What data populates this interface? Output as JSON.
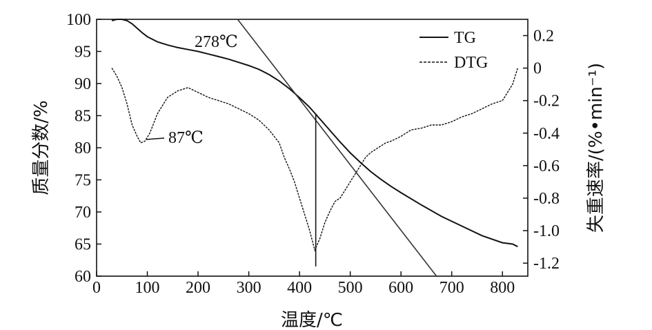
{
  "chart_data": {
    "type": "line",
    "xlabel": "温度/℃",
    "ylabel_left": "质量分数/%",
    "ylabel_right": "失重速率/(%•min⁻¹)",
    "xlim": [
      0,
      850
    ],
    "ylim_left": [
      60,
      100
    ],
    "ylim_right": [
      -1.28,
      0.3
    ],
    "x_ticks": [
      "0",
      "100",
      "200",
      "300",
      "400",
      "500",
      "600",
      "700",
      "800"
    ],
    "y_left_ticks": [
      "60",
      "65",
      "70",
      "75",
      "80",
      "85",
      "90",
      "95",
      "100"
    ],
    "y_right_ticks": [
      "-1.2",
      "-1.0",
      "-0.8",
      "-0.6",
      "-0.4",
      "-0.2",
      "0",
      "0.2"
    ],
    "legend": {
      "position": "top-right",
      "entries": [
        "TG",
        "DTG"
      ]
    },
    "annotations": [
      "278℃",
      "87℃"
    ],
    "series": [
      {
        "name": "TG",
        "axis": "left",
        "style": "solid",
        "x": [
          30,
          40,
          50,
          60,
          70,
          80,
          90,
          100,
          120,
          140,
          160,
          180,
          200,
          220,
          240,
          260,
          280,
          300,
          320,
          340,
          360,
          380,
          400,
          420,
          440,
          460,
          480,
          500,
          520,
          540,
          560,
          580,
          600,
          640,
          680,
          720,
          760,
          800,
          820,
          830
        ],
        "values": [
          99.8,
          100,
          100,
          99.8,
          99.3,
          98.6,
          97.9,
          97.3,
          96.5,
          96.0,
          95.6,
          95.3,
          95.0,
          94.6,
          94.2,
          93.8,
          93.3,
          92.8,
          92.2,
          91.4,
          90.4,
          89.2,
          87.8,
          86.3,
          84.5,
          82.7,
          80.9,
          79.2,
          77.7,
          76.3,
          75.1,
          74.0,
          73.0,
          71.1,
          69.3,
          67.8,
          66.3,
          65.2,
          65.0,
          64.6
        ]
      },
      {
        "name": "DTG",
        "axis": "right",
        "style": "dashed",
        "x": [
          30,
          40,
          50,
          60,
          70,
          80,
          87,
          95,
          105,
          120,
          140,
          160,
          180,
          200,
          220,
          240,
          260,
          280,
          300,
          320,
          340,
          360,
          370,
          380,
          390,
          400,
          410,
          420,
          430,
          440,
          450,
          460,
          470,
          480,
          490,
          500,
          510,
          520,
          530,
          540,
          550,
          560,
          570,
          580,
          600,
          620,
          640,
          660,
          680,
          700,
          720,
          740,
          760,
          780,
          800,
          820,
          830
        ],
        "values": [
          0.0,
          -0.05,
          -0.12,
          -0.22,
          -0.35,
          -0.42,
          -0.46,
          -0.45,
          -0.4,
          -0.28,
          -0.18,
          -0.14,
          -0.12,
          -0.15,
          -0.18,
          -0.2,
          -0.22,
          -0.25,
          -0.28,
          -0.32,
          -0.38,
          -0.46,
          -0.55,
          -0.62,
          -0.7,
          -0.8,
          -0.9,
          -1.0,
          -1.12,
          -1.05,
          -0.95,
          -0.88,
          -0.82,
          -0.8,
          -0.75,
          -0.7,
          -0.65,
          -0.6,
          -0.55,
          -0.52,
          -0.5,
          -0.48,
          -0.46,
          -0.45,
          -0.42,
          -0.38,
          -0.37,
          -0.35,
          -0.35,
          -0.33,
          -0.3,
          -0.28,
          -0.25,
          -0.22,
          -0.2,
          -0.1,
          0.0
        ]
      }
    ],
    "reference_lines": [
      {
        "type": "tangent",
        "x": [
          278,
          670
        ],
        "left_values": [
          100,
          60
        ]
      },
      {
        "type": "vertical",
        "x": 432,
        "right_values": [
          -1.22,
          -0.28
        ]
      }
    ]
  }
}
